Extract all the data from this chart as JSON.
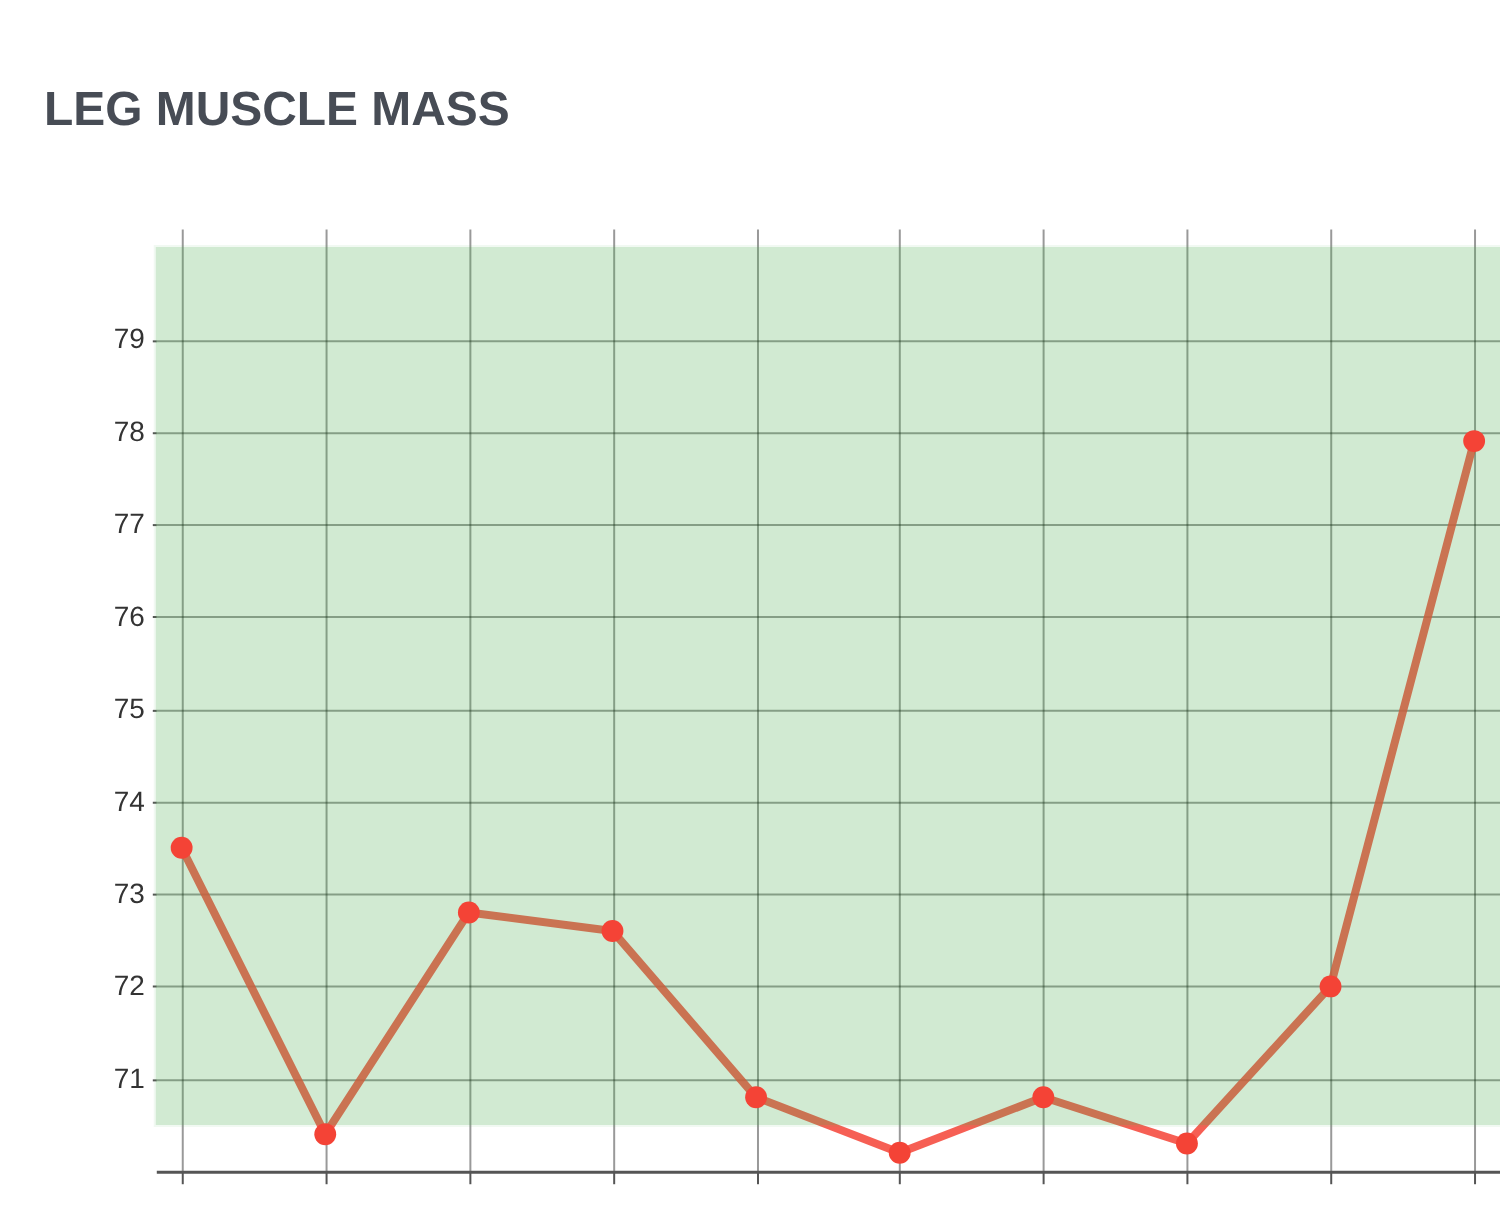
{
  "chart_data": {
    "type": "line",
    "title": "LEG MUSCLE MASS",
    "categories": [
      null,
      null,
      null,
      null,
      null,
      null,
      null,
      null,
      null,
      null
    ],
    "series": [
      {
        "color": "#f44336",
        "values": [
          73.5,
          70.4,
          72.8,
          72.6,
          70.8,
          70.2,
          70.8,
          70.3,
          72.0,
          77.9
        ]
      }
    ],
    "ylim": [
      70,
      80.2
    ],
    "yticks": [
      71,
      72,
      73,
      74,
      75,
      76,
      77,
      78,
      79
    ],
    "grid": true,
    "marker": "circle",
    "line_style": "solid",
    "tick_labels": "y",
    "bands": [
      {
        "axis": "y",
        "from": 70.5,
        "to": 80,
        "color": "#4caf50"
      }
    ]
  }
}
